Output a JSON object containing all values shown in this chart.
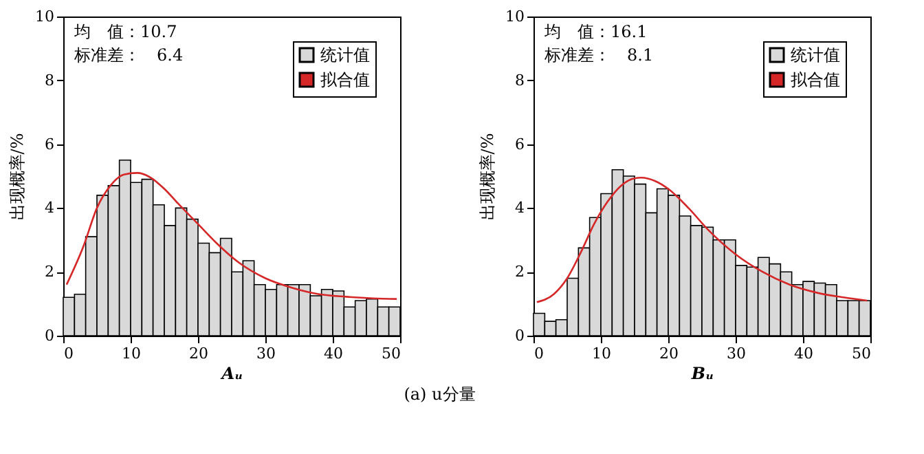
{
  "chart_data": [
    {
      "type": "histogram",
      "xlabel": "Aᵤ",
      "ylabel": "出现概率/%",
      "xlim": [
        0,
        50
      ],
      "xticks": [
        0,
        10,
        20,
        30,
        40,
        50
      ],
      "ylim": [
        0,
        10
      ],
      "yticks": [
        0,
        2,
        4,
        6,
        8,
        10
      ],
      "grid": false,
      "legend": "top right",
      "annotations": [
        "均　值：10.7",
        "标准差：　6.4",
        "(a) u分量"
      ],
      "bins": [
        0,
        1.67,
        3.33,
        5,
        6.67,
        8.33,
        10,
        11.67,
        13.33,
        15,
        16.67,
        18.33,
        20,
        21.67,
        23.33,
        25,
        26.67,
        28.33,
        30,
        31.67,
        33.33,
        35,
        36.67,
        38.33,
        40,
        41.67,
        43.33,
        45,
        46.67,
        48.33,
        50
      ],
      "series": [
        {
          "name": "统计值",
          "color": "#d9d9d9",
          "values": [
            1.2,
            1.3,
            3.1,
            4.4,
            4.7,
            5.5,
            4.8,
            4.9,
            4.1,
            3.45,
            4.0,
            3.65,
            2.9,
            2.6,
            3.05,
            2.0,
            2.35,
            1.6,
            1.45,
            1.6,
            1.6,
            1.6,
            1.25,
            1.45,
            1.4,
            0.9,
            1.1,
            1.15,
            0.9,
            0.9
          ]
        },
        {
          "name": "拟合值",
          "type": "line",
          "color": "#d62728",
          "x": [
            0.5,
            3,
            5,
            7,
            9,
            11,
            13,
            15,
            17,
            20,
            23,
            26,
            30,
            34,
            38,
            42,
            46,
            49.5
          ],
          "values": [
            1.6,
            2.8,
            4.0,
            4.7,
            5.05,
            5.1,
            4.95,
            4.6,
            4.15,
            3.5,
            2.85,
            2.3,
            1.8,
            1.5,
            1.3,
            1.22,
            1.17,
            1.15
          ]
        }
      ]
    },
    {
      "type": "histogram",
      "xlabel": "Bᵤ",
      "ylabel": "出现概率/%",
      "xlim": [
        0,
        50
      ],
      "xticks": [
        0,
        10,
        20,
        30,
        40,
        50
      ],
      "ylim": [
        0,
        10
      ],
      "yticks": [
        0,
        2,
        4,
        6,
        8,
        10
      ],
      "grid": false,
      "legend": "top right",
      "annotations": [
        "均　值：16.1",
        "标准差：　8.1"
      ],
      "bins": [
        0,
        1.67,
        3.33,
        5,
        6.67,
        8.33,
        10,
        11.67,
        13.33,
        15,
        16.67,
        18.33,
        20,
        21.67,
        23.33,
        25,
        26.67,
        28.33,
        30,
        31.67,
        33.33,
        35,
        36.67,
        38.33,
        40,
        41.67,
        43.33,
        45,
        46.67,
        48.33,
        50
      ],
      "series": [
        {
          "name": "统计值",
          "color": "#d9d9d9",
          "values": [
            0.7,
            0.45,
            0.5,
            1.8,
            2.75,
            3.7,
            4.45,
            5.2,
            5.0,
            4.75,
            3.85,
            4.6,
            4.4,
            3.75,
            3.45,
            3.4,
            3.0,
            3.0,
            2.2,
            2.15,
            2.45,
            2.25,
            2.0,
            1.6,
            1.7,
            1.65,
            1.6,
            1.1,
            1.1,
            1.1
          ]
        },
        {
          "name": "拟合值",
          "type": "line",
          "color": "#d62728",
          "x": [
            0.5,
            3,
            5,
            7,
            9,
            11,
            13,
            15,
            16,
            18,
            20,
            23,
            26,
            30,
            34,
            38,
            42,
            46,
            49.5
          ],
          "values": [
            1.05,
            1.3,
            1.8,
            2.6,
            3.5,
            4.2,
            4.7,
            4.93,
            4.95,
            4.85,
            4.6,
            4.0,
            3.3,
            2.55,
            2.0,
            1.6,
            1.35,
            1.2,
            1.1
          ]
        }
      ]
    }
  ]
}
